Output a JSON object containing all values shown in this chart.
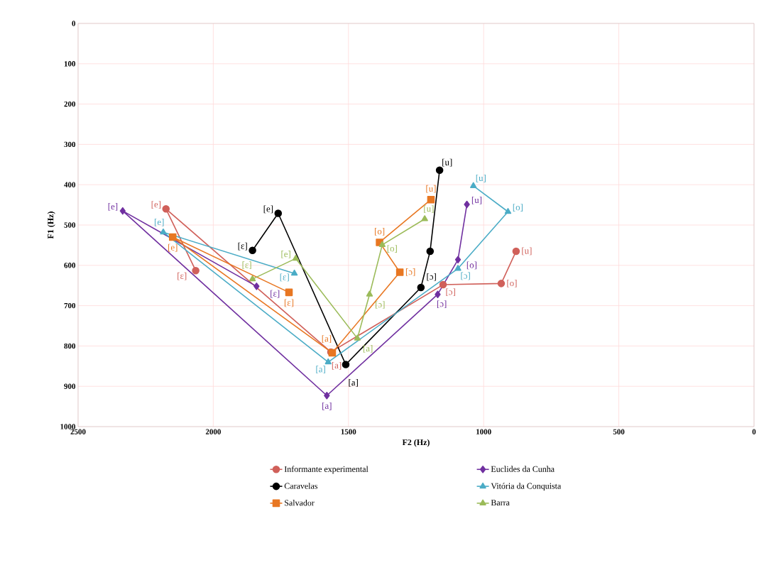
{
  "chart_data": {
    "type": "line",
    "xlabel": "F2 (Hz)",
    "ylabel": "F1 (Hz)",
    "xlim": [
      2500,
      0
    ],
    "ylim": [
      1000,
      0
    ],
    "xticks": [
      2500,
      2000,
      1500,
      1000,
      500,
      0
    ],
    "yticks": [
      0,
      100,
      200,
      300,
      400,
      500,
      600,
      700,
      800,
      900,
      1000
    ],
    "grid": true,
    "legend": "bottom",
    "series": [
      {
        "name": "Informante experimental",
        "color": "#d0605a",
        "marker": "circle",
        "x": [
          2065,
          2175,
          1565,
          1150,
          935,
          880
        ],
        "values": [
          613,
          460,
          815,
          648,
          645,
          565
        ],
        "value_labels": [
          "[ɛ]",
          "[e]",
          "[a]",
          "[ɔ]",
          "[o]",
          "[u]"
        ]
      },
      {
        "name": "Euclides da Cunha",
        "color": "#7030a0",
        "marker": "diamond",
        "x": [
          1840,
          2335,
          1580,
          1170,
          1095,
          1062
        ],
        "values": [
          652,
          465,
          923,
          672,
          586,
          449
        ],
        "value_labels": [
          "[ɛ]",
          "[e]",
          "[a]",
          "[ɔ]",
          "[o]",
          "[u]"
        ]
      },
      {
        "name": "Caravelas",
        "color": "#000000",
        "marker": "circle",
        "x": [
          1855,
          1760,
          1510,
          1232,
          1198,
          1163
        ],
        "values": [
          563,
          471,
          846,
          655,
          565,
          364
        ],
        "value_labels": [
          "[ɛ]",
          "[e]",
          "[a]",
          "[ɔ]",
          null,
          "[u]"
        ]
      },
      {
        "name": "Vitória da Conquista",
        "color": "#4bacc6",
        "marker": "triangle",
        "x": [
          1700,
          2185,
          1575,
          1095,
          910,
          1038
        ],
        "values": [
          620,
          518,
          840,
          608,
          467,
          403
        ],
        "value_labels": [
          "[ɛ]",
          "[e]",
          "[a]",
          "[ɔ]",
          "[o]",
          "[u]"
        ]
      },
      {
        "name": "Salvador",
        "color": "#e87722",
        "marker": "square",
        "x": [
          1720,
          2150,
          1560,
          1310,
          1385,
          1195
        ],
        "values": [
          667,
          530,
          817,
          617,
          543,
          437
        ],
        "value_labels": [
          "[ɛ]",
          "[e]",
          "[a]",
          "[ɔ]",
          "[o]",
          "[u]"
        ]
      },
      {
        "name": "Barra",
        "color": "#9bbb59",
        "marker": "triangle",
        "x": [
          1855,
          1695,
          1467,
          1422,
          1375,
          1218
        ],
        "values": [
          634,
          583,
          781,
          672,
          549,
          485
        ],
        "value_labels": [
          "[ɛ]",
          "[e]",
          "[a]",
          "[ɔ]",
          "[o]",
          "[u]"
        ]
      }
    ]
  }
}
